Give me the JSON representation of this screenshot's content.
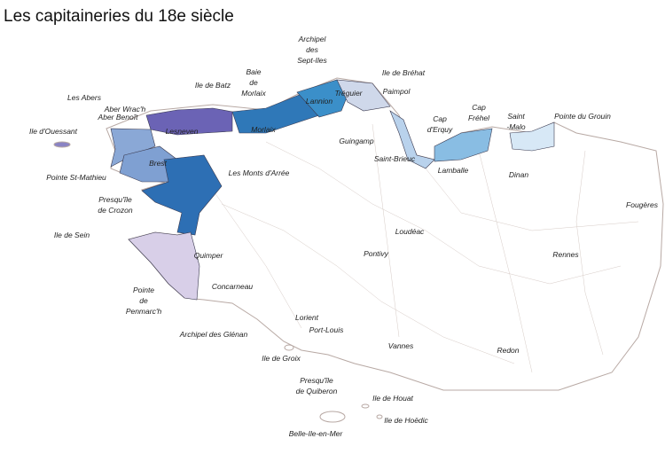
{
  "title": "Les capitaineries du 18e siècle",
  "labels": [
    [
      "Archipel",
      "des",
      "Sept-Iles"
    ],
    [
      "Ile de Bréhat"
    ],
    [
      "Baie",
      "de",
      "Morlaix"
    ],
    [
      "Ile de Batz"
    ],
    [
      "Les Abers"
    ],
    [
      "Lannion"
    ],
    [
      "Tréguier"
    ],
    [
      "Paimpol"
    ],
    [
      "Aber Wrac'h"
    ],
    [
      "Aber Benoît"
    ],
    [
      "Cap",
      "d'Erquy"
    ],
    [
      "Cap",
      "Fréhel"
    ],
    [
      "Saint",
      "-Malo"
    ],
    [
      "Pointe du Grouin"
    ],
    [
      "Ile d'Ouessant"
    ],
    [
      "Lesneven"
    ],
    [
      "Morlaix"
    ],
    [
      "Guingamp"
    ],
    [
      "Saint-Brieuc"
    ],
    [
      "Brest"
    ],
    [
      "Lamballe"
    ],
    [
      "Dinan"
    ],
    [
      "Pointe St-Mathieu"
    ],
    [
      "Les Monts d'Arrée"
    ],
    [
      "Presqu'île",
      "de Crozon"
    ],
    [
      "Fougères"
    ],
    [
      "Loudéac"
    ],
    [
      "Ile de Sein"
    ],
    [
      "Quimper"
    ],
    [
      "Rennes"
    ],
    [
      "Pontivy"
    ],
    [
      "Concarneau"
    ],
    [
      "Pointe",
      "de",
      "Penmarc'h"
    ],
    [
      "Lorient"
    ],
    [
      "Port-Louis"
    ],
    [
      "Archipel des Glénan"
    ],
    [
      "Vannes"
    ],
    [
      "Redon"
    ],
    [
      "Ile de Groix"
    ],
    [
      "Presqu'île",
      "de Quiberon"
    ],
    [
      "Ile de Houat"
    ],
    [
      "Ile de Hoëdic"
    ],
    [
      "Belle-Ile-en-Mer"
    ]
  ]
}
